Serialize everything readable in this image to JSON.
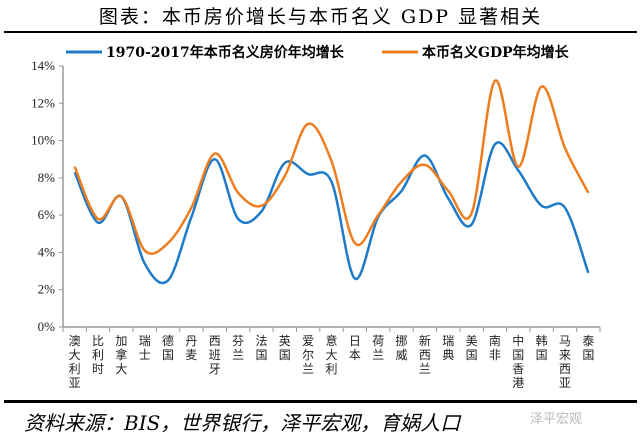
{
  "title": "图表：本币房价增长与本币名义 GDP 显著相关",
  "source": "资料来源：BIS，世界银行，泽平宏观，育娲人口",
  "watermark": "泽平宏观",
  "chart_data": {
    "type": "line",
    "categories": [
      "澳大利亚",
      "比利时",
      "加拿大",
      "瑞士",
      "德国",
      "丹麦",
      "西班牙",
      "芬兰",
      "法国",
      "英国",
      "爱尔兰",
      "意大利",
      "日本",
      "荷兰",
      "挪威",
      "新西兰",
      "瑞典",
      "美国",
      "南非",
      "中国香港",
      "韩国",
      "马来西亚",
      "泰国"
    ],
    "series": [
      {
        "name": "1970-2017年本币名义房价年均增长",
        "color": "#1f7bc8",
        "values": [
          8.3,
          5.6,
          7.0,
          3.4,
          2.5,
          5.9,
          9.0,
          5.8,
          6.2,
          8.8,
          8.2,
          7.8,
          2.6,
          5.9,
          7.3,
          9.2,
          6.9,
          5.5,
          9.8,
          8.4,
          6.5,
          6.4,
          2.9
        ]
      },
      {
        "name": "本币名义GDP年均增长",
        "color": "#ed7d1f",
        "values": [
          8.6,
          5.8,
          7.0,
          4.1,
          4.5,
          6.4,
          9.3,
          7.2,
          6.5,
          8.1,
          10.9,
          8.9,
          4.5,
          6.0,
          7.8,
          8.7,
          7.3,
          6.1,
          13.2,
          8.6,
          12.9,
          9.6,
          7.2
        ]
      }
    ],
    "yticks": [
      "0%",
      "2%",
      "4%",
      "6%",
      "8%",
      "10%",
      "12%",
      "14%"
    ],
    "ylim": [
      0,
      14
    ],
    "legend": "top",
    "grid": false
  }
}
